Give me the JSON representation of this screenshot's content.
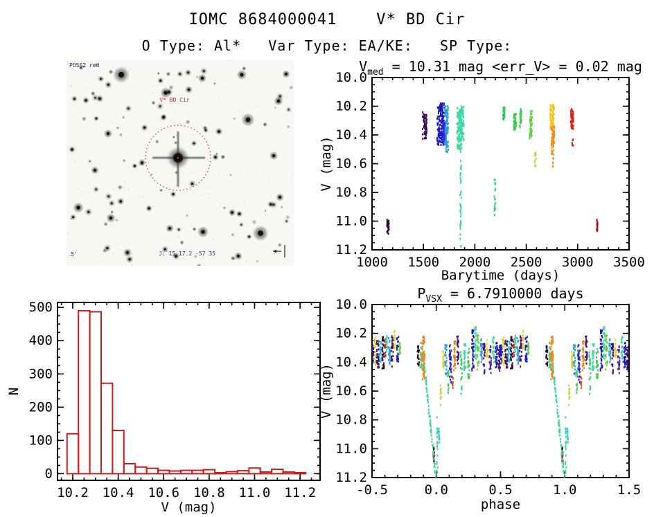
{
  "header": {
    "title": "IOMC 8684000041    V* BD Cir",
    "subtitle": "O Type: Al*   Var Type: EA/KE:   SP Type:"
  },
  "finding_chart": {
    "survey_label": "POSS2 red",
    "target_label": "V* BD Cir",
    "coord_label": "J: 15 17.2 -57 35",
    "scale_label": "5'",
    "circle_color": "#cc3333"
  },
  "chart_data": [
    {
      "id": "lightcurve",
      "type": "scatter",
      "title_parts": [
        {
          "t": "V"
        },
        {
          "t": "med",
          "sub": true
        },
        {
          "t": " = 10.31 mag <err_V> = 0.02 mag"
        }
      ],
      "xlabel": "Barytime (days)",
      "ylabel": "V (mag)",
      "xlim": [
        1000,
        3500
      ],
      "ylim": [
        10.0,
        11.2
      ],
      "y_inverted": true,
      "xticks": [
        1000,
        1500,
        2000,
        2500,
        3000,
        3500
      ],
      "yticks": [
        10.0,
        10.2,
        10.4,
        10.6,
        10.8,
        11.0,
        11.2
      ],
      "x_minor": 100,
      "y_minor": 0.05,
      "x_decimals": 0,
      "y_decimals": 1,
      "clusters": [
        {
          "x": 1155,
          "dx": 10,
          "v1": 10.99,
          "v2": 11.09,
          "color": "#2b0636",
          "n": 30
        },
        {
          "x": 1512,
          "dx": 20,
          "v1": 10.24,
          "v2": 10.43,
          "color": "#3a0b54",
          "n": 60
        },
        {
          "x": 1668,
          "dx": 35,
          "v1": 10.18,
          "v2": 10.47,
          "color": "#1b18c0",
          "n": 170
        },
        {
          "x": 1702,
          "dx": 14,
          "v1": 10.3,
          "v2": 10.47,
          "color": "#2f2fe0",
          "n": 60
        },
        {
          "x": 1725,
          "dx": 16,
          "v1": 10.2,
          "v2": 10.52,
          "color": "#2e9ed8",
          "n": 90
        },
        {
          "x": 1850,
          "dx": 24,
          "v1": 10.21,
          "v2": 10.5,
          "color": "#3ed8a4",
          "n": 120
        },
        {
          "x": 1862,
          "dx": 6,
          "v1": 10.5,
          "v2": 11.2,
          "color": "#3ed8a4",
          "n": 42
        },
        {
          "x": 1880,
          "dx": 14,
          "v1": 10.2,
          "v2": 10.46,
          "color": "#3ed8a4",
          "n": 60
        },
        {
          "x": 2195,
          "dx": 6,
          "v1": 10.7,
          "v2": 10.96,
          "color": "#3bcf70",
          "n": 20
        },
        {
          "x": 2282,
          "dx": 10,
          "v1": 10.21,
          "v2": 10.3,
          "color": "#30c75c",
          "n": 26
        },
        {
          "x": 2390,
          "dx": 12,
          "v1": 10.25,
          "v2": 10.37,
          "color": "#33cb52",
          "n": 30
        },
        {
          "x": 2445,
          "dx": 10,
          "v1": 10.22,
          "v2": 10.35,
          "color": "#3bcf49",
          "n": 30
        },
        {
          "x": 2545,
          "dx": 12,
          "v1": 10.22,
          "v2": 10.43,
          "color": "#5ed23e",
          "n": 40
        },
        {
          "x": 2590,
          "dx": 6,
          "v1": 10.52,
          "v2": 10.63,
          "color": "#b4da2c",
          "n": 12
        },
        {
          "x": 2752,
          "dx": 20,
          "v1": 10.19,
          "v2": 10.36,
          "color": "#f2c61b",
          "n": 80
        },
        {
          "x": 2760,
          "dx": 14,
          "v1": 10.34,
          "v2": 10.54,
          "color": "#ef8e17",
          "n": 55
        },
        {
          "x": 2766,
          "dx": 8,
          "v1": 10.56,
          "v2": 10.63,
          "color": "#ef8e17",
          "n": 6
        },
        {
          "x": 2945,
          "dx": 14,
          "v1": 10.22,
          "v2": 10.37,
          "color": "#e02414",
          "n": 50
        },
        {
          "x": 2952,
          "dx": 6,
          "v1": 10.42,
          "v2": 10.48,
          "color": "#e02414",
          "n": 7
        },
        {
          "x": 3190,
          "dx": 6,
          "v1": 10.99,
          "v2": 11.07,
          "color": "#a31010",
          "n": 20
        }
      ]
    },
    {
      "id": "histogram",
      "type": "bar",
      "bar_color": "#cc1d1d",
      "xlabel": "V (mag)",
      "ylabel": "N",
      "xlim": [
        10.133,
        11.288
      ],
      "ylim": [
        -20,
        515
      ],
      "xticks": [
        10.2,
        10.4,
        10.6,
        10.8,
        11.0,
        11.2
      ],
      "yticks": [
        0,
        100,
        200,
        300,
        400,
        500
      ],
      "x_minor": 0.05,
      "y_minor": 25,
      "x_decimals": 1,
      "y_decimals": 0,
      "bin_start": 10.175,
      "bin_width": 0.05,
      "values": [
        120,
        490,
        487,
        272,
        130,
        30,
        20,
        16,
        10,
        8,
        10,
        10,
        12,
        3,
        6,
        9,
        17,
        5,
        13,
        5,
        3
      ]
    },
    {
      "id": "phase_curve",
      "type": "scatter",
      "title_parts": [
        {
          "t": "P"
        },
        {
          "t": "VSX",
          "sub": true
        },
        {
          "t": " = 6.7910000 days"
        }
      ],
      "xlabel": "phase",
      "ylabel": "V (mag)",
      "xlim": [
        -0.5,
        1.5
      ],
      "ylim": [
        10.0,
        11.2
      ],
      "y_inverted": true,
      "xticks": [
        -0.5,
        0.0,
        0.5,
        1.0,
        1.5
      ],
      "yticks": [
        10.0,
        10.2,
        10.4,
        10.6,
        10.8,
        11.0,
        11.2
      ],
      "x_minor": 0.1,
      "y_minor": 0.05,
      "x_decimals": 1,
      "y_decimals": 1,
      "duplicate_phase_offset": 1.0,
      "clusters": [
        {
          "p": -0.495,
          "dp": 0.01,
          "v1": 10.28,
          "v2": 10.45,
          "color": "#1b18c0",
          "n": 26
        },
        {
          "p": -0.478,
          "dp": 0.008,
          "v1": 10.22,
          "v2": 10.42,
          "color": "#e3d41e",
          "n": 22
        },
        {
          "p": -0.455,
          "dp": 0.01,
          "v1": 10.25,
          "v2": 10.44,
          "color": "#43107a",
          "n": 34
        },
        {
          "p": -0.432,
          "dp": 0.008,
          "v1": 10.24,
          "v2": 10.4,
          "color": "#35c4dd",
          "n": 22
        },
        {
          "p": -0.414,
          "dp": 0.008,
          "v1": 10.22,
          "v2": 10.45,
          "color": "#2b0636",
          "n": 30
        },
        {
          "p": -0.396,
          "dp": 0.006,
          "v1": 10.24,
          "v2": 10.36,
          "color": "#d92213",
          "n": 20
        },
        {
          "p": -0.384,
          "dp": 0.006,
          "v1": 10.19,
          "v2": 10.33,
          "color": "#3ed8a4",
          "n": 18
        },
        {
          "p": -0.365,
          "dp": 0.007,
          "v1": 10.23,
          "v2": 10.42,
          "color": "#2e9ed8",
          "n": 26
        },
        {
          "p": -0.344,
          "dp": 0.008,
          "v1": 10.21,
          "v2": 10.44,
          "color": "#43107a",
          "n": 30
        },
        {
          "p": -0.322,
          "dp": 0.006,
          "v1": 10.18,
          "v2": 10.31,
          "color": "#e3d41e",
          "n": 16
        },
        {
          "p": -0.3,
          "dp": 0.007,
          "v1": 10.22,
          "v2": 10.4,
          "color": "#1b18c0",
          "n": 24
        },
        {
          "p": -0.284,
          "dp": 0.005,
          "v1": 10.25,
          "v2": 10.38,
          "color": "#63cf3d",
          "n": 14
        },
        {
          "p": -0.14,
          "dp": 0.006,
          "v1": 10.28,
          "v2": 10.44,
          "color": "#2b0636",
          "n": 20
        },
        {
          "p": -0.118,
          "dp": 0.006,
          "v1": 10.25,
          "v2": 10.46,
          "color": "#3bcf70",
          "n": 20
        },
        {
          "p": -0.1,
          "dp": 0.01,
          "v1": 10.22,
          "v2": 10.52,
          "color": "#ee8617",
          "n": 60
        },
        {
          "p": -0.018,
          "dp": 0.004,
          "v1": 11.0,
          "v2": 11.09,
          "color": "#a31010",
          "n": 22
        },
        {
          "p": -0.02,
          "dp": 0.003,
          "v1": 10.97,
          "v2": 11.01,
          "color": "#141414",
          "n": 6
        },
        {
          "p": 0.008,
          "dp": 0.004,
          "v1": 10.78,
          "v2": 11.2,
          "color": "#3ed8a4",
          "n": 22
        },
        {
          "p": 0.022,
          "dp": 0.003,
          "v1": 10.85,
          "v2": 10.97,
          "color": "#35c4dd",
          "n": 10
        },
        {
          "p": 0.035,
          "dp": 0.003,
          "v1": 10.55,
          "v2": 10.72,
          "color": "#b4da2c",
          "n": 11
        },
        {
          "p": 0.055,
          "dp": 0.006,
          "v1": 10.3,
          "v2": 10.44,
          "color": "#e3d41e",
          "n": 16
        },
        {
          "p": 0.075,
          "dp": 0.007,
          "v1": 10.26,
          "v2": 10.5,
          "color": "#2e9ed8",
          "n": 26
        },
        {
          "p": 0.092,
          "dp": 0.005,
          "v1": 10.45,
          "v2": 10.62,
          "color": "#3bcf70",
          "n": 14
        },
        {
          "p": 0.11,
          "dp": 0.008,
          "v1": 10.28,
          "v2": 10.55,
          "color": "#2326d8",
          "n": 34
        },
        {
          "p": 0.128,
          "dp": 0.004,
          "v1": 10.5,
          "v2": 10.58,
          "color": "#e5491d",
          "n": 8
        },
        {
          "p": 0.143,
          "dp": 0.007,
          "v1": 10.25,
          "v2": 10.46,
          "color": "#ee8617",
          "n": 30
        },
        {
          "p": 0.168,
          "dp": 0.007,
          "v1": 10.22,
          "v2": 10.41,
          "color": "#43107a",
          "n": 26
        },
        {
          "p": 0.195,
          "dp": 0.006,
          "v1": 10.33,
          "v2": 10.62,
          "color": "#3bcf70",
          "n": 22
        },
        {
          "p": 0.222,
          "dp": 0.007,
          "v1": 10.27,
          "v2": 10.46,
          "color": "#3ed8a4",
          "n": 26
        },
        {
          "p": 0.252,
          "dp": 0.006,
          "v1": 10.3,
          "v2": 10.52,
          "color": "#33cb52",
          "n": 22
        },
        {
          "p": 0.285,
          "dp": 0.008,
          "v1": 10.17,
          "v2": 10.46,
          "color": "#1b18c0",
          "n": 40
        },
        {
          "p": 0.305,
          "dp": 0.006,
          "v1": 10.15,
          "v2": 10.38,
          "color": "#3ed8a4",
          "n": 26
        },
        {
          "p": 0.325,
          "dp": 0.007,
          "v1": 10.2,
          "v2": 10.46,
          "color": "#63cf3d",
          "n": 26
        },
        {
          "p": 0.35,
          "dp": 0.006,
          "v1": 10.24,
          "v2": 10.4,
          "color": "#2e9ed8",
          "n": 22
        },
        {
          "p": 0.372,
          "dp": 0.007,
          "v1": 10.27,
          "v2": 10.49,
          "color": "#43107a",
          "n": 26
        },
        {
          "p": 0.395,
          "dp": 0.005,
          "v1": 10.24,
          "v2": 10.37,
          "color": "#e3d41e",
          "n": 16
        },
        {
          "p": 0.42,
          "dp": 0.007,
          "v1": 10.28,
          "v2": 10.5,
          "color": "#552a9e",
          "n": 24
        },
        {
          "p": 0.445,
          "dp": 0.006,
          "v1": 10.2,
          "v2": 10.4,
          "color": "#3ed8a4",
          "n": 20
        },
        {
          "p": 0.468,
          "dp": 0.007,
          "v1": 10.24,
          "v2": 10.44,
          "color": "#1b18c0",
          "n": 26
        },
        {
          "p": 0.488,
          "dp": 0.006,
          "v1": 10.28,
          "v2": 10.46,
          "color": "#43107a",
          "n": 22
        }
      ],
      "diagonals": [
        {
          "p1": -0.095,
          "v1": 10.4,
          "p2": -0.003,
          "v2": 11.21,
          "dp": 0.004,
          "color": "#3ed8a4",
          "n": 85
        }
      ]
    }
  ]
}
